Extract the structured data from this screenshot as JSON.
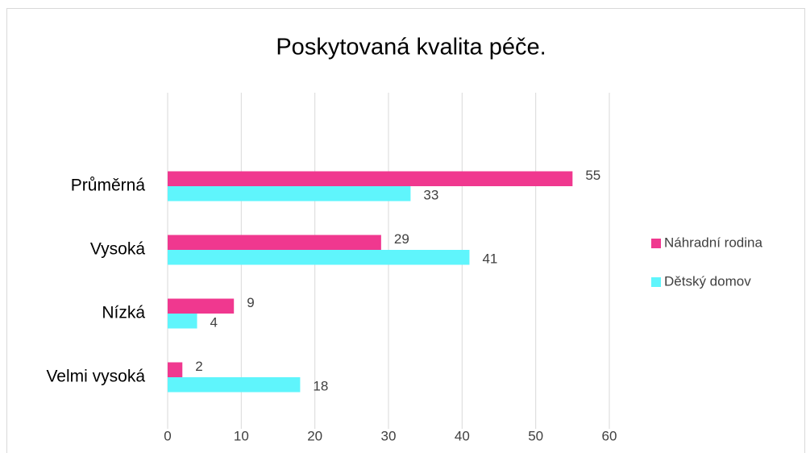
{
  "chart_data": {
    "type": "barh",
    "title": "Poskytovaná kvalita péče.",
    "categories": [
      "Průměrná",
      "Vysoká",
      "Nízká",
      "Velmi vysoká"
    ],
    "series": [
      {
        "name": "Náhradní rodina",
        "color": "#f0388f",
        "values": [
          55,
          29,
          9,
          2
        ]
      },
      {
        "name": "Dětský domov",
        "color": "#5ff5fc",
        "values": [
          33,
          41,
          4,
          18
        ]
      }
    ],
    "xlim": [
      0,
      60
    ],
    "xticks": [
      0,
      10,
      20,
      30,
      40,
      50,
      60
    ],
    "grid": true,
    "legend": "right"
  }
}
